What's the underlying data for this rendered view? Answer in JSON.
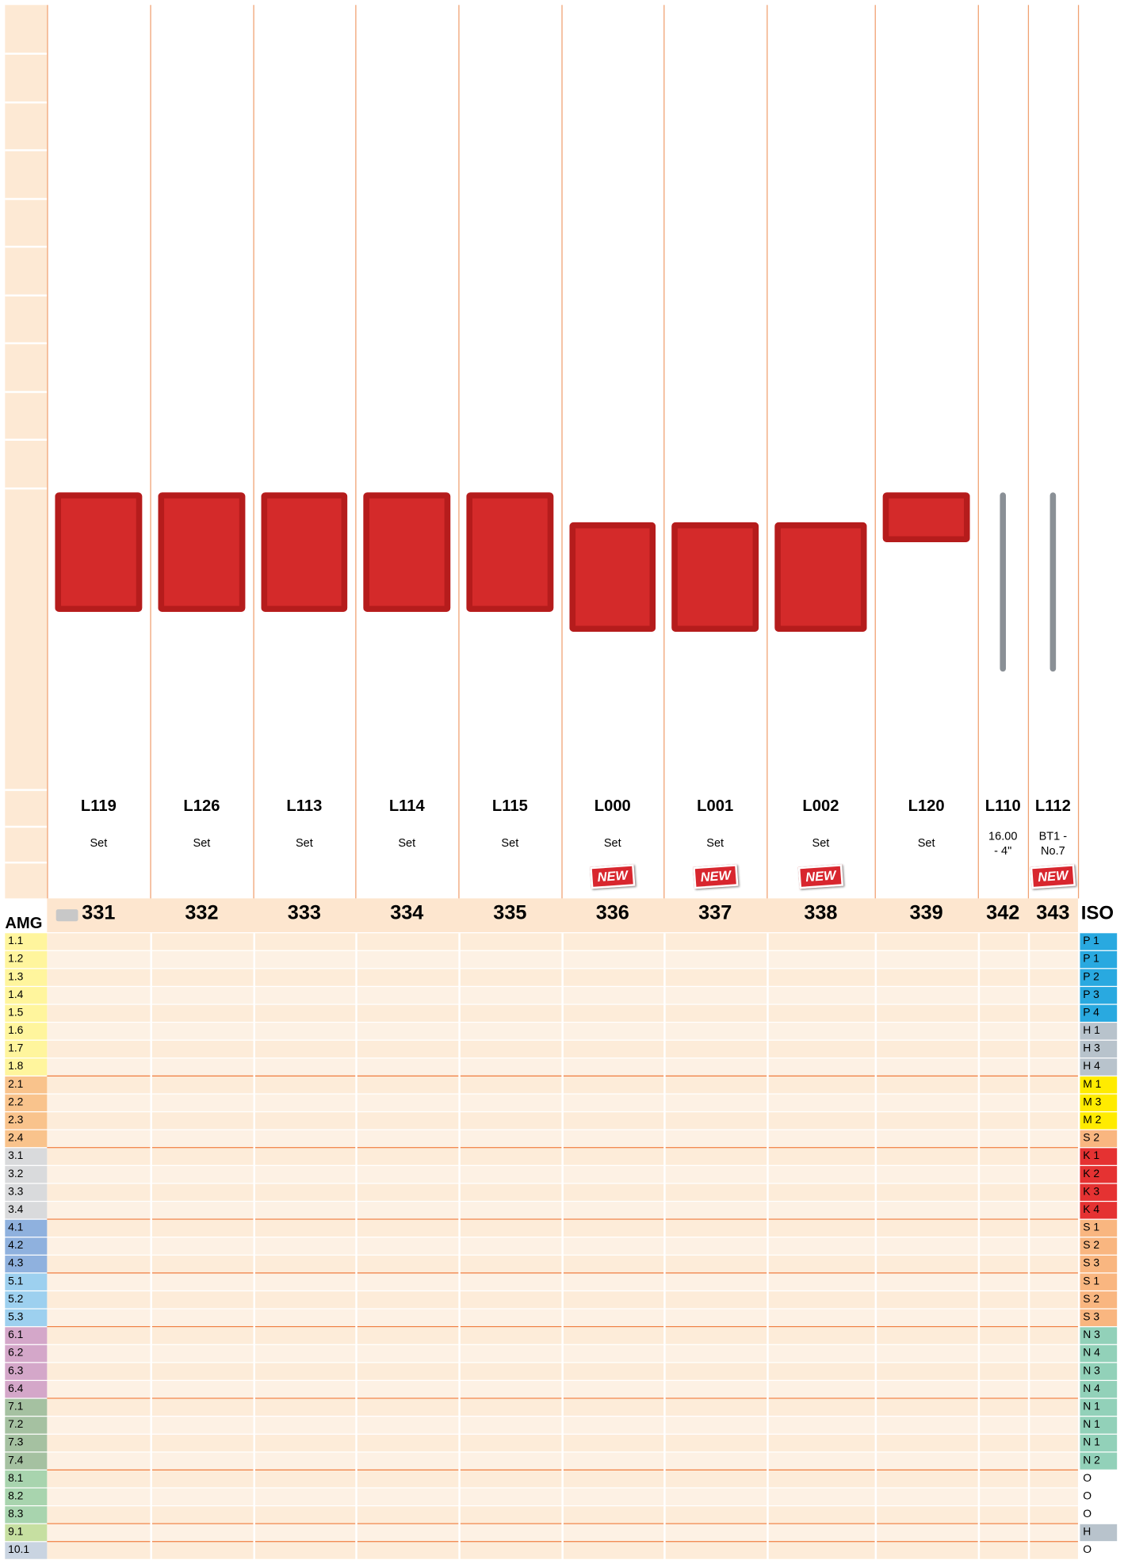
{
  "amg_header": "AMG",
  "iso_header": "ISO",
  "columns": [
    {
      "code": "L119",
      "description": [
        "Set"
      ],
      "page": 331
    },
    {
      "code": "L126",
      "description": [
        "Set"
      ],
      "page": 332
    },
    {
      "code": "L113",
      "description": [
        "Set"
      ],
      "page": 333
    },
    {
      "code": "L114",
      "description": [
        "Set"
      ],
      "page": 334
    },
    {
      "code": "L115",
      "description": [
        "Set"
      ],
      "page": 335
    },
    {
      "code": "L000",
      "description": [
        "Set"
      ],
      "badge": "NEW",
      "page": 336
    },
    {
      "code": "L001",
      "description": [
        "Set"
      ],
      "badge": "NEW",
      "page": 337
    },
    {
      "code": "L002",
      "description": [
        "Set"
      ],
      "badge": "NEW",
      "page": 338
    },
    {
      "code": "L120",
      "description": [
        "Set"
      ],
      "page": 339
    },
    {
      "code": "L110",
      "description": [
        "16.00",
        "- 4\""
      ],
      "page": 342
    },
    {
      "code": "L112",
      "description": [
        "BT1 -",
        "No.7"
      ],
      "badge": "NEW",
      "page": 343
    }
  ],
  "rows": [
    {
      "amg": "1.1",
      "amg_color": "#fff59d",
      "iso": "P 1",
      "iso_color": "#29a9e0"
    },
    {
      "amg": "1.2",
      "amg_color": "#fff59d",
      "iso": "P 1",
      "iso_color": "#29a9e0"
    },
    {
      "amg": "1.3",
      "amg_color": "#fff59d",
      "iso": "P 2",
      "iso_color": "#29a9e0"
    },
    {
      "amg": "1.4",
      "amg_color": "#fff59d",
      "iso": "P 3",
      "iso_color": "#29a9e0"
    },
    {
      "amg": "1.5",
      "amg_color": "#fff59d",
      "iso": "P 4",
      "iso_color": "#29a9e0"
    },
    {
      "amg": "1.6",
      "amg_color": "#fff59d",
      "iso": "H 1",
      "iso_color": "#b8c3cc"
    },
    {
      "amg": "1.7",
      "amg_color": "#fff59d",
      "iso": "H 3",
      "iso_color": "#b8c3cc"
    },
    {
      "amg": "1.8",
      "amg_color": "#fff59d",
      "iso": "H 4",
      "iso_color": "#b8c3cc"
    },
    {
      "amg": "2.1",
      "amg_color": "#f9c38c",
      "iso": "M 1",
      "iso_color": "#ffeb00"
    },
    {
      "amg": "2.2",
      "amg_color": "#f9c38c",
      "iso": "M 3",
      "iso_color": "#ffeb00"
    },
    {
      "amg": "2.3",
      "amg_color": "#f9c38c",
      "iso": "M 2",
      "iso_color": "#ffeb00"
    },
    {
      "amg": "2.4",
      "amg_color": "#f9c38c",
      "iso": "S 2",
      "iso_color": "#f9b680"
    },
    {
      "amg": "3.1",
      "amg_color": "#d9dadc",
      "iso": "K 1",
      "iso_color": "#e53232"
    },
    {
      "amg": "3.2",
      "amg_color": "#d9dadc",
      "iso": "K 2",
      "iso_color": "#e53232"
    },
    {
      "amg": "3.3",
      "amg_color": "#d9dadc",
      "iso": "K 3",
      "iso_color": "#e53232"
    },
    {
      "amg": "3.4",
      "amg_color": "#d9dadc",
      "iso": "K 4",
      "iso_color": "#e53232"
    },
    {
      "amg": "4.1",
      "amg_color": "#8fb1de",
      "iso": "S 1",
      "iso_color": "#f9b680"
    },
    {
      "amg": "4.2",
      "amg_color": "#8fb1de",
      "iso": "S 2",
      "iso_color": "#f9b680"
    },
    {
      "amg": "4.3",
      "amg_color": "#8fb1de",
      "iso": "S 3",
      "iso_color": "#f9b680"
    },
    {
      "amg": "5.1",
      "amg_color": "#9dd0ef",
      "iso": "S 1",
      "iso_color": "#f9b680"
    },
    {
      "amg": "5.2",
      "amg_color": "#9dd0ef",
      "iso": "S 2",
      "iso_color": "#f9b680"
    },
    {
      "amg": "5.3",
      "amg_color": "#9dd0ef",
      "iso": "S 3",
      "iso_color": "#f9b680"
    },
    {
      "amg": "6.1",
      "amg_color": "#d4a7c9",
      "iso": "N 3",
      "iso_color": "#92d1b9"
    },
    {
      "amg": "6.2",
      "amg_color": "#d4a7c9",
      "iso": "N 4",
      "iso_color": "#92d1b9"
    },
    {
      "amg": "6.3",
      "amg_color": "#d4a7c9",
      "iso": "N 3",
      "iso_color": "#92d1b9"
    },
    {
      "amg": "6.4",
      "amg_color": "#d4a7c9",
      "iso": "N 4",
      "iso_color": "#92d1b9"
    },
    {
      "amg": "7.1",
      "amg_color": "#a5c1a1",
      "iso": "N 1",
      "iso_color": "#92d1b9"
    },
    {
      "amg": "7.2",
      "amg_color": "#a5c1a1",
      "iso": "N 1",
      "iso_color": "#92d1b9"
    },
    {
      "amg": "7.3",
      "amg_color": "#a5c1a1",
      "iso": "N 1",
      "iso_color": "#92d1b9"
    },
    {
      "amg": "7.4",
      "amg_color": "#a5c1a1",
      "iso": "N 2",
      "iso_color": "#92d1b9"
    },
    {
      "amg": "8.1",
      "amg_color": "#a8d4ae",
      "iso": "O"
    },
    {
      "amg": "8.2",
      "amg_color": "#a8d4ae",
      "iso": "O"
    },
    {
      "amg": "8.3",
      "amg_color": "#a8d4ae",
      "iso": "O"
    },
    {
      "amg": "9.1",
      "amg_color": "#c6dfa1",
      "iso": "H",
      "iso_color": "#b8c3cc"
    },
    {
      "amg": "10.1",
      "amg_color": "#c9d4e1",
      "iso": "O"
    }
  ]
}
